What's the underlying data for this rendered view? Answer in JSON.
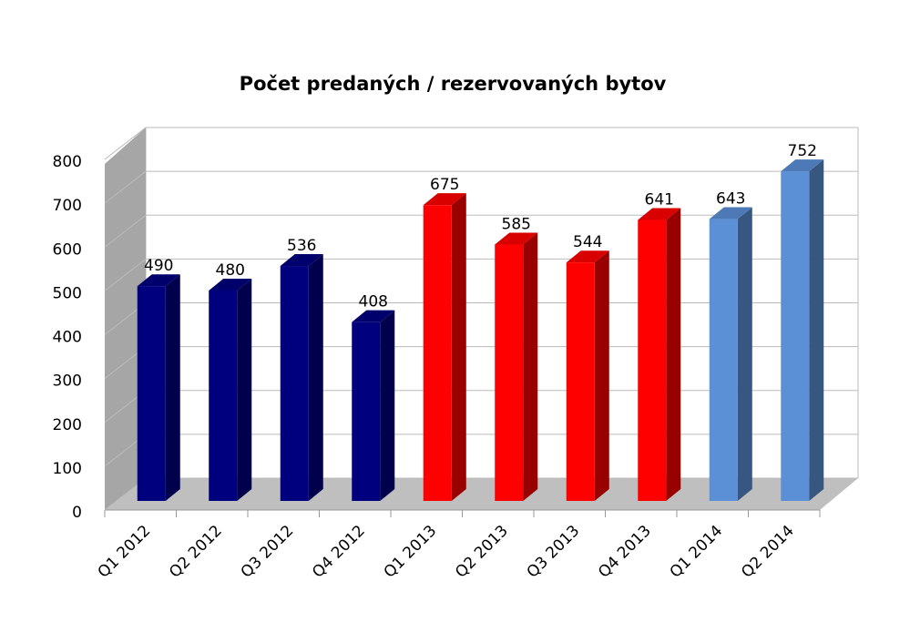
{
  "chart_data": {
    "type": "bar3d",
    "title": "Počet predaných / rezervovaných bytov",
    "categories": [
      "Q1 2012",
      "Q2 2012",
      "Q3 2012",
      "Q4 2012",
      "Q1 2013",
      "Q2 2013",
      "Q3 2013",
      "Q4 2013",
      "Q1 2014",
      "Q2 2014"
    ],
    "values": [
      490,
      480,
      536,
      408,
      675,
      585,
      544,
      641,
      643,
      752
    ],
    "colors": [
      "#00007f",
      "#00007f",
      "#00007f",
      "#00007f",
      "#ff0000",
      "#ff0000",
      "#ff0000",
      "#ff0000",
      "#5b8fd6",
      "#5b8fd6"
    ],
    "ylim": [
      0,
      800
    ],
    "yticks": [
      0,
      100,
      200,
      300,
      400,
      500,
      600,
      700,
      800
    ],
    "grid": true
  }
}
